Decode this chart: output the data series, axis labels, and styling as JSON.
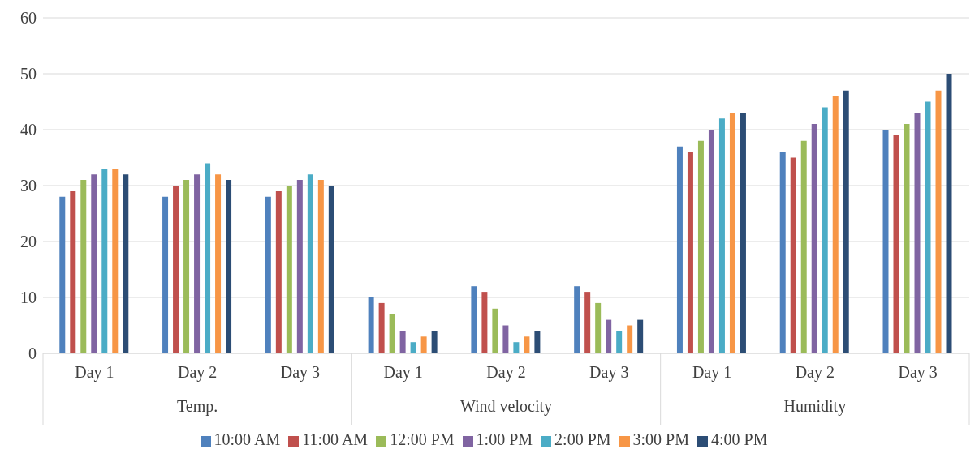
{
  "chart_data": {
    "type": "bar",
    "categories": [
      "Day 1",
      "Day 2",
      "Day 3",
      "Day 1",
      "Day 2",
      "Day 3",
      "Day 1",
      "Day 2",
      "Day 3"
    ],
    "annotations": [
      "Temp.",
      "Wind velocity",
      "Humidity"
    ],
    "series": [
      {
        "name": "10:00 AM",
        "color": "#4f81bd",
        "values": [
          28,
          28,
          28,
          10,
          12,
          12,
          37,
          36,
          40
        ]
      },
      {
        "name": "11:00 AM",
        "color": "#c0504d",
        "values": [
          29,
          30,
          29,
          9,
          11,
          11,
          36,
          35,
          39
        ]
      },
      {
        "name": "12:00 PM",
        "color": "#9bbb59",
        "values": [
          31,
          31,
          30,
          7,
          8,
          9,
          38,
          38,
          41
        ]
      },
      {
        "name": "1:00 PM",
        "color": "#8064a2",
        "values": [
          32,
          32,
          31,
          4,
          5,
          6,
          40,
          41,
          43
        ]
      },
      {
        "name": "2:00 PM",
        "color": "#4bacc6",
        "values": [
          33,
          34,
          32,
          2,
          2,
          4,
          42,
          44,
          45
        ]
      },
      {
        "name": "3:00 PM",
        "color": "#f79646",
        "values": [
          33,
          32,
          31,
          3,
          3,
          5,
          43,
          46,
          47
        ]
      },
      {
        "name": "4:00 PM",
        "color": "#2c4d75",
        "values": [
          32,
          31,
          30,
          4,
          4,
          6,
          43,
          47,
          50
        ]
      }
    ],
    "ylim": [
      0,
      60
    ],
    "yticks": [
      0,
      10,
      20,
      30,
      40,
      50,
      60
    ],
    "grid": "y",
    "legend": "bottom"
  }
}
